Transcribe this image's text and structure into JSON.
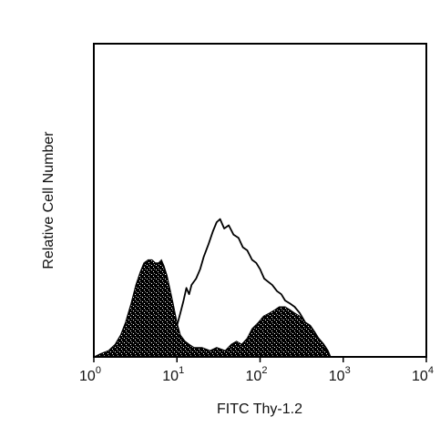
{
  "chart_data": {
    "type": "area",
    "title": "",
    "xlabel": "FITC Thy-1.2",
    "ylabel": "Relative Cell Number",
    "x_scale": "log",
    "xlim": [
      1,
      10000
    ],
    "ylim": [
      0,
      100
    ],
    "grid": false,
    "x_ticks": [
      {
        "value": 1,
        "base": "10",
        "exp": "0"
      },
      {
        "value": 10,
        "base": "10",
        "exp": "1"
      },
      {
        "value": 100,
        "base": "10",
        "exp": "2"
      },
      {
        "value": 1000,
        "base": "10",
        "exp": "3"
      },
      {
        "value": 10000,
        "base": "10",
        "exp": "4"
      }
    ],
    "series": [
      {
        "style": "filled-speckled",
        "color": "#000000",
        "points": [
          [
            1.0,
            0
          ],
          [
            1.2,
            1
          ],
          [
            1.5,
            2
          ],
          [
            1.8,
            4
          ],
          [
            2.1,
            7
          ],
          [
            2.4,
            11
          ],
          [
            2.8,
            17
          ],
          [
            3.2,
            23
          ],
          [
            3.6,
            27
          ],
          [
            4.0,
            30
          ],
          [
            4.5,
            31
          ],
          [
            5.0,
            31
          ],
          [
            5.5,
            30
          ],
          [
            6.0,
            30
          ],
          [
            6.5,
            31
          ],
          [
            7.0,
            29
          ],
          [
            7.6,
            26
          ],
          [
            8.2,
            22
          ],
          [
            9.0,
            17
          ],
          [
            10,
            11
          ],
          [
            11,
            7
          ],
          [
            12.5,
            5
          ],
          [
            14,
            4
          ],
          [
            16,
            3
          ],
          [
            20,
            3
          ],
          [
            25,
            2
          ],
          [
            30,
            3
          ],
          [
            38,
            2
          ],
          [
            45,
            4
          ],
          [
            52,
            5
          ],
          [
            60,
            4
          ],
          [
            70,
            6
          ],
          [
            80,
            9
          ],
          [
            95,
            11
          ],
          [
            110,
            13
          ],
          [
            130,
            14
          ],
          [
            150,
            15
          ],
          [
            170,
            16
          ],
          [
            200,
            16
          ],
          [
            230,
            15
          ],
          [
            260,
            14
          ],
          [
            300,
            13
          ],
          [
            350,
            11
          ],
          [
            400,
            10
          ],
          [
            450,
            8
          ],
          [
            500,
            6
          ],
          [
            580,
            4
          ],
          [
            650,
            2
          ],
          [
            700,
            0
          ]
        ]
      },
      {
        "style": "outline",
        "color": "#000000",
        "points": [
          [
            10,
            10
          ],
          [
            11,
            14
          ],
          [
            12,
            18
          ],
          [
            13,
            22
          ],
          [
            14,
            20
          ],
          [
            15,
            23
          ],
          [
            17,
            25
          ],
          [
            19,
            28
          ],
          [
            21,
            32
          ],
          [
            24,
            36
          ],
          [
            27,
            40
          ],
          [
            30,
            43
          ],
          [
            33,
            44
          ],
          [
            37,
            41
          ],
          [
            42,
            42
          ],
          [
            48,
            39
          ],
          [
            55,
            38
          ],
          [
            62,
            35
          ],
          [
            70,
            34
          ],
          [
            80,
            31
          ],
          [
            90,
            30
          ],
          [
            100,
            28
          ],
          [
            112,
            25
          ],
          [
            125,
            24
          ],
          [
            140,
            23
          ],
          [
            160,
            21
          ],
          [
            180,
            20
          ],
          [
            200,
            18
          ],
          [
            230,
            17
          ],
          [
            260,
            16
          ],
          [
            300,
            14
          ],
          [
            350,
            11
          ],
          [
            400,
            10
          ],
          [
            450,
            8
          ],
          [
            500,
            6
          ],
          [
            580,
            4
          ],
          [
            650,
            2
          ],
          [
            700,
            0
          ]
        ]
      }
    ]
  }
}
